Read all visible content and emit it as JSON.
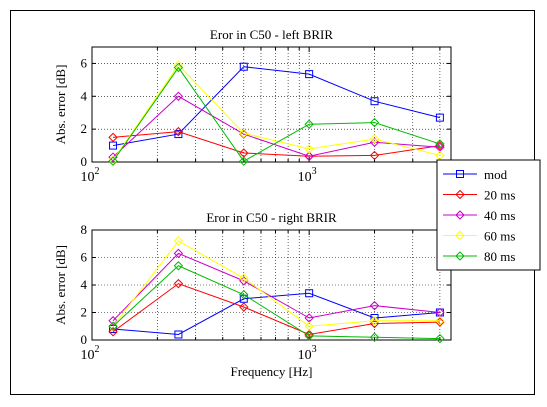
{
  "chart_data": [
    {
      "type": "line",
      "title": "Eror in C50 - left BRIR",
      "xlabel": "",
      "ylabel": "Abs. error [dB]",
      "xscale": "log",
      "xlim": [
        100,
        4500
      ],
      "ylim": [
        0,
        7
      ],
      "yticks": [
        0,
        2,
        4,
        6
      ],
      "xtick_labels": [
        {
          "base": "10",
          "exp": "2"
        },
        {
          "base": "10",
          "exp": "3"
        }
      ],
      "grid": true,
      "x": [
        125,
        250,
        500,
        1000,
        2000,
        4000
      ],
      "series": [
        {
          "name": "mod",
          "color": "#0000ff",
          "marker": "square",
          "values": [
            1.0,
            1.7,
            5.8,
            5.35,
            3.7,
            2.7
          ]
        },
        {
          "name": "20 ms",
          "color": "#ff0000",
          "marker": "diamond",
          "values": [
            1.5,
            1.85,
            0.55,
            0.35,
            0.4,
            1.0
          ]
        },
        {
          "name": "40 ms",
          "color": "#cc00cc",
          "marker": "diamond",
          "values": [
            0.3,
            4.0,
            1.7,
            0.35,
            1.2,
            0.9
          ]
        },
        {
          "name": "60 ms",
          "color": "#ffff00",
          "marker": "diamond",
          "values": [
            0.1,
            5.9,
            1.75,
            0.8,
            1.4,
            0.4
          ]
        },
        {
          "name": "80 ms",
          "color": "#00bb00",
          "marker": "diamond",
          "values": [
            0.05,
            5.75,
            0.05,
            2.3,
            2.4,
            1.1
          ]
        }
      ]
    },
    {
      "type": "line",
      "title": "Eror in C50 - right BRIR",
      "xlabel": "Frequency [Hz]",
      "ylabel": "Abs. error [dB]",
      "xscale": "log",
      "xlim": [
        100,
        4500
      ],
      "ylim": [
        0,
        8
      ],
      "yticks": [
        0,
        2,
        4,
        6,
        8
      ],
      "xtick_labels": [
        {
          "base": "10",
          "exp": "2"
        },
        {
          "base": "10",
          "exp": "3"
        }
      ],
      "grid": true,
      "x": [
        125,
        250,
        500,
        1000,
        2000,
        4000
      ],
      "series": [
        {
          "name": "mod",
          "color": "#0000ff",
          "marker": "square",
          "values": [
            0.8,
            0.4,
            3.0,
            3.4,
            1.6,
            2.0
          ]
        },
        {
          "name": "20 ms",
          "color": "#ff0000",
          "marker": "diamond",
          "values": [
            0.6,
            4.1,
            2.4,
            0.4,
            1.2,
            1.3
          ]
        },
        {
          "name": "40 ms",
          "color": "#cc00cc",
          "marker": "diamond",
          "values": [
            1.4,
            6.3,
            4.3,
            1.6,
            2.5,
            2.0
          ]
        },
        {
          "name": "60 ms",
          "color": "#ffff00",
          "marker": "diamond",
          "values": [
            1.0,
            7.2,
            4.5,
            1.0,
            1.4,
            1.4
          ]
        },
        {
          "name": "80 ms",
          "color": "#00bb00",
          "marker": "diamond",
          "values": [
            1.0,
            5.4,
            3.3,
            0.3,
            0.2,
            0.1
          ]
        }
      ]
    }
  ],
  "legend": {
    "placement": "right, between plots",
    "entries": [
      "mod",
      "20 ms",
      "40 ms",
      "60 ms",
      "80 ms"
    ]
  }
}
